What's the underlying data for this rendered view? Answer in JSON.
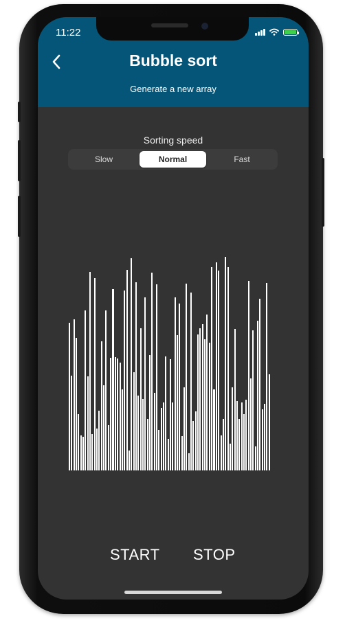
{
  "status_bar": {
    "time": "11:22"
  },
  "header": {
    "back_icon": "chevron-left-icon",
    "title": "Bubble sort",
    "generate_label": "Generate a new array",
    "background": "#055578"
  },
  "speed": {
    "label": "Sorting speed",
    "options": [
      "Slow",
      "Normal",
      "Fast"
    ],
    "selected": "Normal"
  },
  "array": {
    "bar_color": "#ffffff",
    "values": [
      215,
      138,
      220,
      193,
      82,
      51,
      49,
      233,
      137,
      289,
      53,
      280,
      61,
      87,
      188,
      124,
      233,
      66,
      164,
      264,
      165,
      163,
      157,
      118,
      262,
      292,
      29,
      309,
      143,
      274,
      109,
      207,
      104,
      252,
      75,
      168,
      288,
      113,
      271,
      59,
      91,
      99,
      166,
      46,
      162,
      99,
      252,
      197,
      243,
      50,
      121,
      272,
      25,
      259,
      72,
      86,
      198,
      207,
      213,
      191,
      227,
      186,
      296,
      118,
      303,
      291,
      51,
      75,
      311,
      296,
      39,
      121,
      206,
      101,
      75,
      99,
      82,
      103,
      276,
      134,
      204,
      35,
      218,
      250,
      89,
      97,
      273,
      140
    ]
  },
  "actions": {
    "start": "START",
    "stop": "STOP"
  }
}
